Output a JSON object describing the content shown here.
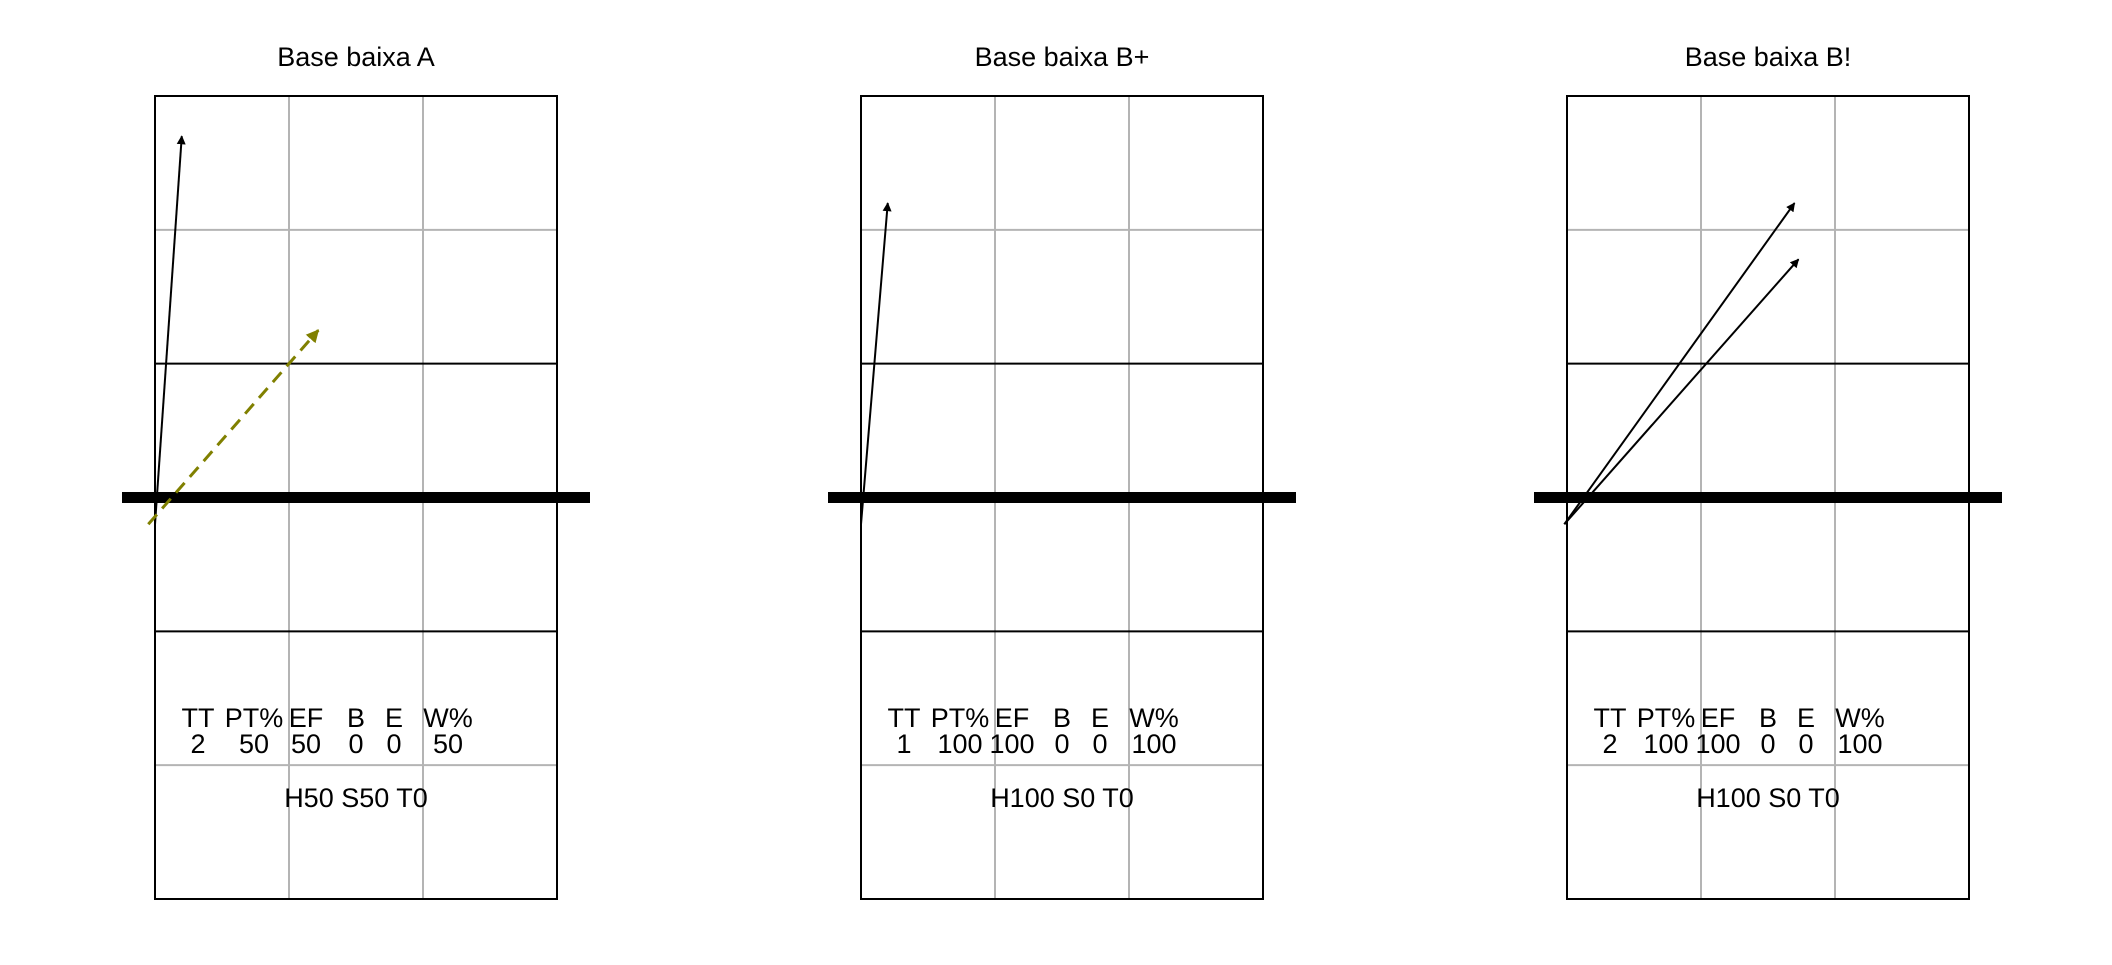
{
  "stats_headers": [
    "TT",
    "PT%",
    "EF",
    "B",
    "E",
    "W%"
  ],
  "colors": {
    "court_line": "#000000",
    "grid_line": "#b4b4b4",
    "net": "#000000",
    "arrow": "#000000",
    "dashed_arrow": "#808000"
  },
  "panels": [
    {
      "title": "Base baixa A",
      "stats_values": [
        "2",
        "50",
        "50",
        "0",
        "0",
        "50"
      ],
      "summary": "H50 S50 T0",
      "arrows": [
        {
          "from": [
            0.0,
            -0.2
          ],
          "to": [
            0.2,
            2.7
          ],
          "style": "solid"
        },
        {
          "from": [
            -0.05,
            -0.2
          ],
          "to": [
            1.22,
            1.25
          ],
          "style": "dashed"
        }
      ]
    },
    {
      "title": "Base baixa B+",
      "stats_values": [
        "1",
        "100",
        "100",
        "0",
        "0",
        "100"
      ],
      "summary": "H100 S0 T0",
      "arrows": [
        {
          "from": [
            0.0,
            -0.2
          ],
          "to": [
            0.2,
            2.2
          ],
          "style": "solid"
        }
      ]
    },
    {
      "title": "Base baixa B!",
      "stats_values": [
        "2",
        "100",
        "100",
        "0",
        "0",
        "100"
      ],
      "summary": "H100 S0 T0",
      "arrows": [
        {
          "from": [
            -0.02,
            -0.2
          ],
          "to": [
            1.7,
            2.2
          ],
          "style": "solid"
        },
        {
          "from": [
            -0.02,
            -0.2
          ],
          "to": [
            1.73,
            1.78
          ],
          "style": "solid"
        }
      ]
    }
  ]
}
